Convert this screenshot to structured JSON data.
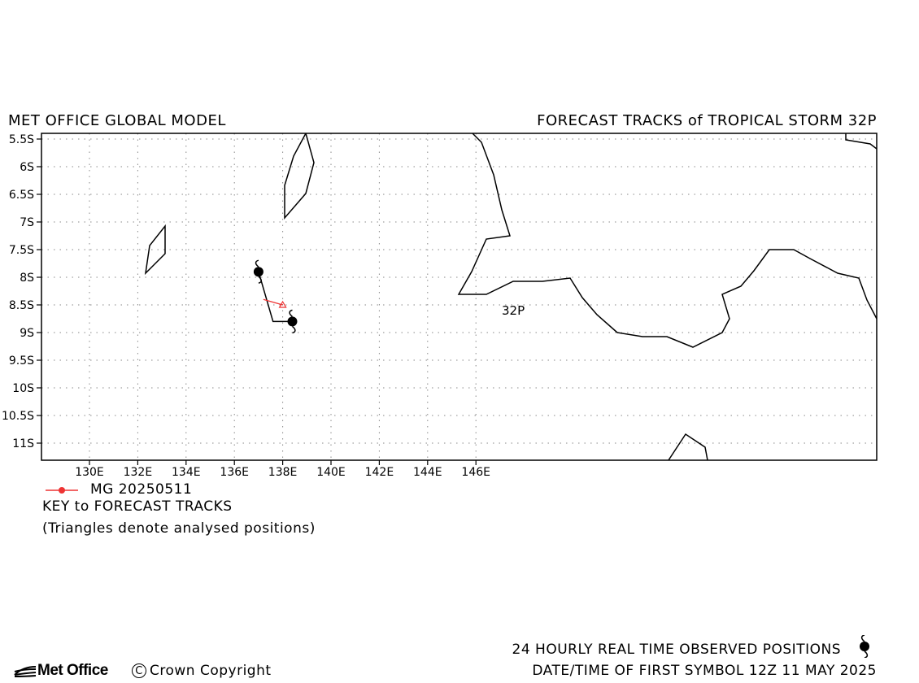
{
  "header": {
    "left_title": "MET OFFICE GLOBAL MODEL",
    "right_title": "FORECAST TRACKS of TROPICAL STORM 32P"
  },
  "map": {
    "lat_ticks": [
      "5.5S",
      "6S",
      "6.5S",
      "7S",
      "7.5S",
      "8S",
      "8.5S",
      "9S",
      "9.5S",
      "10S",
      "10.5S",
      "11S"
    ],
    "lon_ticks": [
      "130E",
      "132E",
      "134E",
      "136E",
      "138E",
      "140E",
      "142E",
      "144E",
      "146E"
    ],
    "storm_label": "32P",
    "grid": true,
    "track_color": "#ee3333"
  },
  "legend": {
    "entry_label": "MG 20250511",
    "key_title": "KEY to FORECAST TRACKS",
    "key_note": "(Triangles denote analysed positions)"
  },
  "footer": {
    "observed_label": "24 HOURLY REAL TIME OBSERVED POSITIONS",
    "first_symbol_label": "DATE/TIME OF FIRST SYMBOL 12Z 11 MAY 2025",
    "logo_text": "Met Office",
    "copyright": "Crown Copyright"
  },
  "chart_data": {
    "type": "map",
    "lon_range": [
      "129E",
      "146.4E"
    ],
    "lat_range": [
      "5.4S",
      "11.3S"
    ],
    "observed_track": [
      {
        "lon": "137.0E",
        "lat": "7.9S"
      },
      {
        "lon": "137.6E",
        "lat": "8.8S"
      },
      {
        "lon": "138.4E",
        "lat": "8.8S"
      }
    ],
    "forecast_tracks": [
      {
        "name": "MG 20250511",
        "points": [
          {
            "lon": "137.2E",
            "lat": "8.4S"
          },
          {
            "lon": "138.0E",
            "lat": "8.5S"
          }
        ]
      }
    ]
  }
}
